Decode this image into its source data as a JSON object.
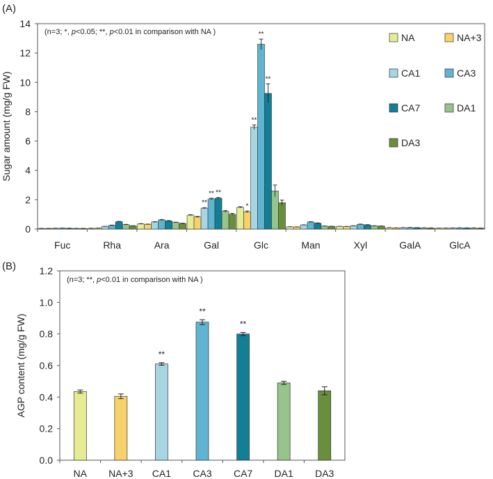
{
  "chart_data": [
    {
      "panel": "(A)",
      "type": "bar",
      "ylabel": "Sugar amount (mg/g FW)",
      "ylim": [
        0,
        14
      ],
      "yticks": [
        "0",
        "2",
        "4",
        "6",
        "8",
        "10",
        "12",
        "14"
      ],
      "note": "(n=3; *, p<0.05; **, p<0.01 in comparison with NA )",
      "categories": [
        "Fuc",
        "Rha",
        "Ara",
        "Gal",
        "Glc",
        "Man",
        "Xyl",
        "GalA",
        "GlcA"
      ],
      "legend_position": "top-right",
      "series": [
        {
          "name": "NA",
          "color": "#e6ec94",
          "values": [
            0.04,
            0.05,
            0.35,
            0.95,
            1.48,
            0.15,
            0.18,
            0.09,
            0.06
          ],
          "errors": [
            0.01,
            0.01,
            0.02,
            0.03,
            0.04,
            0.01,
            0.01,
            0.01,
            0.01
          ],
          "sig": [
            "",
            "",
            "",
            "",
            "",
            "",
            "",
            "",
            ""
          ]
        },
        {
          "name": "NA+3",
          "color": "#f7d26a",
          "values": [
            0.04,
            0.06,
            0.32,
            0.82,
            1.17,
            0.14,
            0.17,
            0.08,
            0.06
          ],
          "errors": [
            0.01,
            0.01,
            0.02,
            0.04,
            0.06,
            0.01,
            0.01,
            0.01,
            0.01
          ],
          "sig": [
            "",
            "",
            "",
            "",
            "*",
            "",
            "",
            "",
            ""
          ]
        },
        {
          "name": "CA1",
          "color": "#a8d5e2",
          "values": [
            0.05,
            0.18,
            0.48,
            1.42,
            6.95,
            0.28,
            0.22,
            0.09,
            0.07
          ],
          "errors": [
            0.01,
            0.01,
            0.02,
            0.04,
            0.15,
            0.01,
            0.01,
            0.01,
            0.01
          ],
          "sig": [
            "",
            "",
            "",
            "**",
            "**",
            "",
            "",
            "",
            ""
          ]
        },
        {
          "name": "CA3",
          "color": "#5fb4d2",
          "values": [
            0.06,
            0.25,
            0.62,
            2.05,
            12.6,
            0.48,
            0.32,
            0.1,
            0.08
          ],
          "errors": [
            0.01,
            0.02,
            0.03,
            0.05,
            0.35,
            0.02,
            0.02,
            0.01,
            0.01
          ],
          "sig": [
            "",
            "",
            "",
            "**",
            "**",
            "",
            "",
            "",
            ""
          ]
        },
        {
          "name": "CA7",
          "color": "#127f96",
          "values": [
            0.05,
            0.5,
            0.55,
            2.1,
            9.25,
            0.4,
            0.28,
            0.09,
            0.07
          ],
          "errors": [
            0.01,
            0.02,
            0.03,
            0.05,
            0.65,
            0.02,
            0.02,
            0.01,
            0.01
          ],
          "sig": [
            "",
            "",
            "",
            "**",
            "**",
            "",
            "",
            "",
            ""
          ]
        },
        {
          "name": "DA1",
          "color": "#97c48a",
          "values": [
            0.04,
            0.3,
            0.45,
            1.2,
            2.6,
            0.2,
            0.22,
            0.08,
            0.07
          ],
          "errors": [
            0.01,
            0.02,
            0.02,
            0.06,
            0.4,
            0.01,
            0.01,
            0.01,
            0.01
          ],
          "sig": [
            "",
            "",
            "",
            "",
            "",
            "",
            "",
            "",
            ""
          ]
        },
        {
          "name": "DA3",
          "color": "#6a8f3c",
          "values": [
            0.04,
            0.22,
            0.38,
            1.0,
            1.8,
            0.18,
            0.2,
            0.07,
            0.06
          ],
          "errors": [
            0.01,
            0.01,
            0.02,
            0.07,
            0.18,
            0.01,
            0.01,
            0.01,
            0.01
          ],
          "sig": [
            "",
            "",
            "",
            "",
            "",
            "",
            "",
            "",
            ""
          ]
        }
      ]
    },
    {
      "panel": "(B)",
      "type": "bar",
      "ylabel": "AGP content (mg/g FW)",
      "ylim": [
        0,
        1.2
      ],
      "yticks": [
        "0.0",
        "0.2",
        "0.4",
        "0.6",
        "0.8",
        "1.0",
        "1.2"
      ],
      "note": "(n=3; **, p<0.01 in comparison with NA )",
      "categories": [
        "NA",
        "NA+3",
        "CA1",
        "CA3",
        "CA7",
        "DA1",
        "DA3"
      ],
      "colors": [
        "#e6ec94",
        "#f7d26a",
        "#a8d5e2",
        "#5fb4d2",
        "#127f96",
        "#97c48a",
        "#6a8f3c"
      ],
      "values": [
        0.435,
        0.405,
        0.61,
        0.875,
        0.8,
        0.49,
        0.44
      ],
      "errors": [
        0.01,
        0.015,
        0.008,
        0.015,
        0.01,
        0.01,
        0.025
      ],
      "sig": [
        "",
        "",
        "**",
        "**",
        "**",
        "",
        ""
      ]
    }
  ]
}
